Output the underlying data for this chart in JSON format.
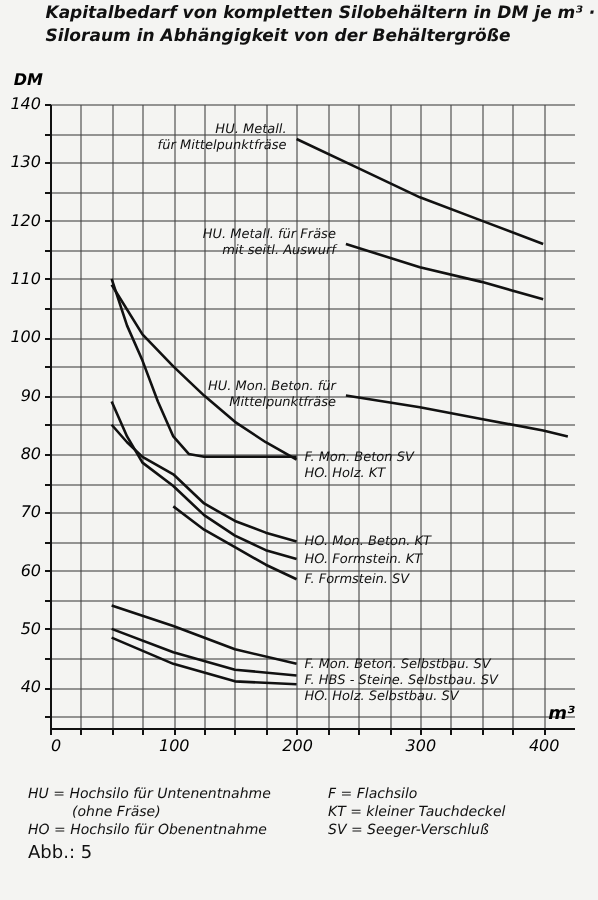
{
  "chart_data": {
    "type": "line",
    "title": "Kapitalbedarf von kompletten Silobehältern in DM je m³ ·",
    "subtitle": "Siloraum in Abhängigkeit von der Behältergröße",
    "xlabel": "m³",
    "ylabel": "DM",
    "xlim": [
      0,
      425
    ],
    "ylim": [
      33,
      140
    ],
    "xticks": [
      0,
      {
        "value": 25,
        "label": null
      },
      {
        "value": 50,
        "label": null
      },
      {
        "value": 75,
        "label": null
      },
      100,
      {
        "value": 125,
        "label": null
      },
      {
        "value": 150,
        "label": null
      },
      {
        "value": 175,
        "label": null
      },
      200,
      {
        "value": 225,
        "label": null
      },
      {
        "value": 250,
        "label": null
      },
      {
        "value": 275,
        "label": null
      },
      300,
      {
        "value": 325,
        "label": null
      },
      {
        "value": 350,
        "label": null
      },
      {
        "value": 375,
        "label": null
      },
      400
    ],
    "yticks": [
      {
        "value": 35,
        "label": null
      },
      40,
      {
        "value": 45,
        "label": null
      },
      50,
      {
        "value": 55,
        "label": null
      },
      60,
      {
        "value": 65,
        "label": null
      },
      70,
      {
        "value": 75,
        "label": null
      },
      80,
      {
        "value": 85,
        "label": null
      },
      90,
      {
        "value": 95,
        "label": null
      },
      100,
      {
        "value": 105,
        "label": null
      },
      110,
      {
        "value": 115,
        "label": null
      },
      120,
      {
        "value": 125,
        "label": null
      },
      130,
      {
        "value": 135,
        "label": null
      },
      140
    ],
    "grid": true,
    "legend": false,
    "marker": "none",
    "line_style": "solid",
    "series": [
      {
        "name": "HU. Metall.\nfür Mittelpunktfräse",
        "color": "#111111",
        "x": [
          200,
          250,
          300,
          350,
          400
        ],
        "values": [
          134,
          129,
          124,
          120,
          116
        ]
      },
      {
        "name": "HU. Metall. für Fräse\nmit seitl. Auswurf",
        "color": "#111111",
        "x": [
          240,
          300,
          350,
          400
        ],
        "values": [
          116,
          112,
          109.5,
          106.5
        ]
      },
      {
        "name": "HU. Mon. Beton. für\nMittelpunktfräse",
        "color": "#111111",
        "x": [
          240,
          300,
          350,
          400,
          420
        ],
        "values": [
          90,
          88,
          86,
          84,
          83
        ]
      },
      {
        "name": "HO. Holz. KT",
        "color": "#111111",
        "x": [
          50,
          75,
          100,
          125,
          150,
          175,
          200
        ],
        "values": [
          109,
          100.5,
          95,
          90,
          85.5,
          82,
          79
        ]
      },
      {
        "name": "F. Mon. Beton SV",
        "color": "#111111",
        "x": [
          50,
          62.5,
          75,
          87.5,
          100,
          112.5,
          125,
          200
        ],
        "values": [
          110,
          102,
          96,
          89,
          83,
          80,
          79.5,
          79.5
        ]
      },
      {
        "name": "HO. Mon. Beton. KT",
        "color": "#111111",
        "x": [
          50,
          62.5,
          75,
          100,
          125,
          150,
          175,
          200
        ],
        "values": [
          85,
          82,
          79.5,
          76.5,
          71.5,
          68.5,
          66.5,
          65
        ]
      },
      {
        "name": "HO. Formstein. KT",
        "color": "#111111",
        "x": [
          50,
          62.5,
          75,
          100,
          125,
          150,
          175,
          200
        ],
        "values": [
          89,
          83,
          78.5,
          74.5,
          69.5,
          66,
          63.5,
          62
        ]
      },
      {
        "name": "F. Formstein. SV",
        "color": "#111111",
        "x": [
          100,
          125,
          150,
          175,
          200
        ],
        "values": [
          71,
          67,
          64,
          61,
          58.5
        ]
      },
      {
        "name": "F. Mon. Beton. Selbstbau. SV",
        "color": "#111111",
        "x": [
          50,
          100,
          150,
          200
        ],
        "values": [
          54,
          50.5,
          46.5,
          44
        ]
      },
      {
        "name": "F. HBS - Steine. Selbstbau. SV",
        "color": "#111111",
        "x": [
          50,
          100,
          150,
          200
        ],
        "values": [
          50,
          46,
          43,
          42
        ]
      },
      {
        "name": "HO. Holz. Selbstbau. SV",
        "color": "#111111",
        "x": [
          50,
          100,
          150,
          200
        ],
        "values": [
          48.5,
          44,
          41,
          40.5
        ]
      }
    ],
    "annotations": [
      "HU = Hochsilo für Untenentnahme",
      "(ohne Fräse)",
      "HO = Hochsilo für Obenentnahme",
      "F = Flachsilo",
      "KT = kleiner Tauchdeckel",
      "SV = Seeger-Verschluß",
      "Abb.: 5"
    ]
  }
}
